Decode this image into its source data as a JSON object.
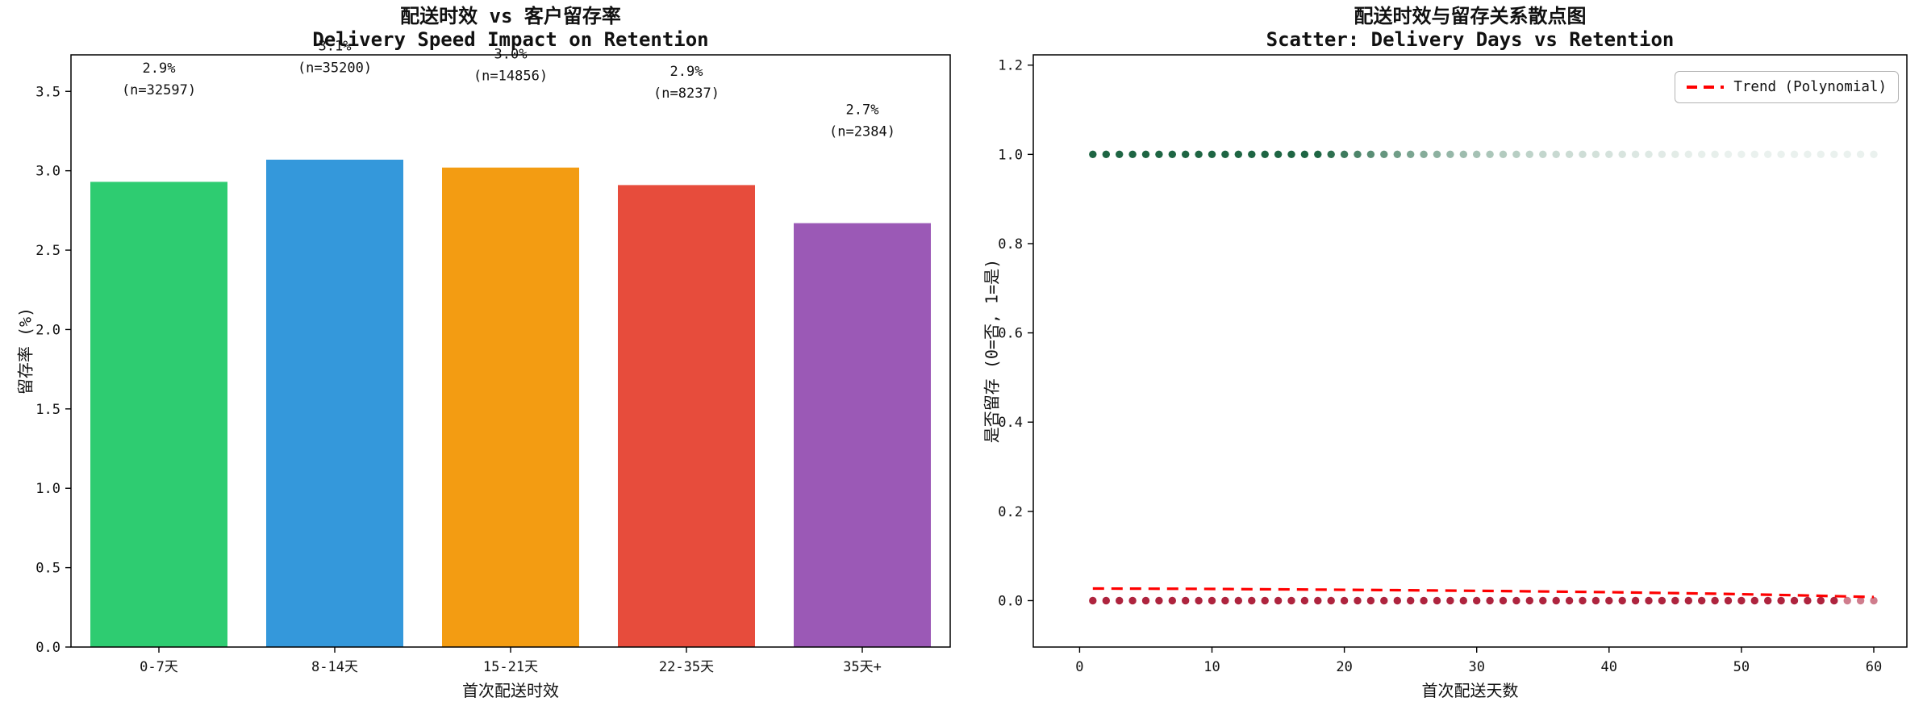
{
  "chart_data": [
    {
      "type": "bar",
      "title": "配送时效 vs 客户留存率",
      "subtitle": "Delivery Speed Impact on Retention",
      "xlabel": "首次配送时效",
      "ylabel": "留存率 (%)",
      "categories": [
        "0-7天",
        "8-14天",
        "15-21天",
        "22-35天",
        "35天+"
      ],
      "values": [
        2.93,
        3.07,
        3.02,
        2.91,
        2.67
      ],
      "bar_colors": [
        "#2ecc71",
        "#3498db",
        "#f39c12",
        "#e74c3c",
        "#9b59b6"
      ],
      "labels": [
        {
          "pct": "2.9%",
          "n": "(n=32597)"
        },
        {
          "pct": "3.1%",
          "n": "(n=35200)"
        },
        {
          "pct": "3.0%",
          "n": "(n=14856)"
        },
        {
          "pct": "2.9%",
          "n": "(n=8237)"
        },
        {
          "pct": "2.7%",
          "n": "(n=2384)"
        }
      ],
      "ylim": [
        0,
        3.73
      ],
      "yticks": [
        "0.0",
        "0.5",
        "1.0",
        "1.5",
        "2.0",
        "2.5",
        "3.0",
        "3.5"
      ],
      "grid": false
    },
    {
      "type": "scatter",
      "title": "配送时效与留存关系散点图",
      "subtitle": "Scatter: Delivery Days vs Retention",
      "xlabel": "首次配送天数",
      "ylabel": "是否留存 (0=否, 1=是)",
      "xlim": [
        -3.5,
        62.5
      ],
      "ylim": [
        -0.104,
        1.223
      ],
      "xticks": [
        "0",
        "10",
        "20",
        "30",
        "40",
        "50",
        "60"
      ],
      "yticks": [
        "0.0",
        "0.2",
        "0.4",
        "0.6",
        "0.8",
        "1.0",
        "1.2"
      ],
      "series": [
        {
          "name": "retained",
          "y": 1,
          "x_start": 1,
          "x_end": 60,
          "color": "#17603d",
          "fade": "point opacity fades toward higher delivery days"
        },
        {
          "name": "not-retained",
          "y": 0,
          "x_start": 1,
          "x_end": 60,
          "color": "#a8132f"
        }
      ],
      "trend": {
        "label": "Trend (Polynomial)",
        "color": "#ff0000",
        "line_style": "dashed",
        "legend_position": "upper right",
        "points": [
          [
            1,
            0.027
          ],
          [
            8,
            0.0265
          ],
          [
            16,
            0.025
          ],
          [
            24,
            0.0235
          ],
          [
            32,
            0.0215
          ],
          [
            40,
            0.019
          ],
          [
            48,
            0.0155
          ],
          [
            54,
            0.012
          ],
          [
            60,
            0.008
          ]
        ]
      },
      "grid": false
    }
  ]
}
